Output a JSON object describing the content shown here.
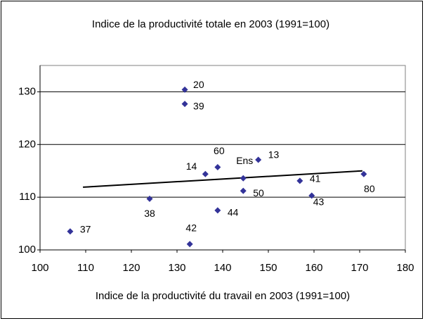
{
  "chart_data": {
    "type": "scatter",
    "title": "Indice de la productivité totale en 2003 (1991=100)",
    "x_label": "Indice de la productivité du travail en 2003 (1991=100)",
    "x": [
      106.6,
      124.0,
      132.8,
      131.7,
      131.7,
      136.2,
      138.9,
      138.9,
      144.5,
      144.5,
      147.8,
      156.9,
      159.5,
      170.9
    ],
    "values": [
      103.5,
      109.7,
      101.1,
      130.4,
      127.7,
      114.4,
      115.7,
      107.5,
      113.6,
      111.2,
      117.1,
      113.1,
      110.3,
      114.4
    ],
    "point_labels": [
      "37",
      "38",
      "42",
      "20",
      "39",
      "14",
      "60",
      "44",
      "Ens",
      "50",
      "13",
      "41",
      "43",
      "80"
    ],
    "color": "#333399",
    "trendline": {
      "x": [
        109.4,
        170.6
      ],
      "values": [
        111.9,
        115.0
      ],
      "color": "#000000"
    },
    "xlim": [
      100,
      180
    ],
    "xticks": [
      100,
      110,
      120,
      130,
      140,
      150,
      160,
      170,
      180
    ],
    "ylim": [
      100,
      135
    ],
    "yticks": [
      100,
      110,
      120,
      130
    ],
    "grid": true
  }
}
